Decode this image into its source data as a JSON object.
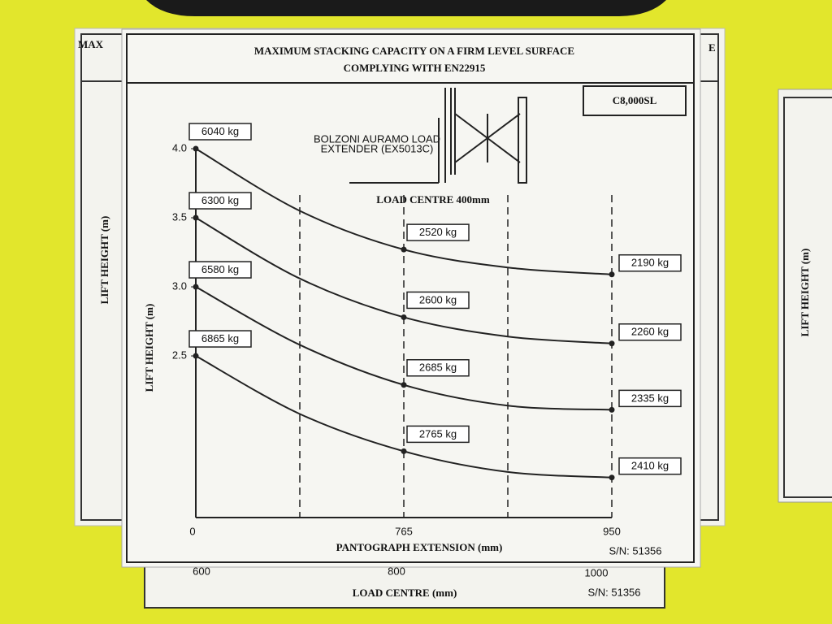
{
  "plate": {
    "title_line1": "MAXIMUM STACKING CAPACITY ON A FIRM LEVEL SURFACE",
    "title_line2": "COMPLYING WITH EN22915",
    "model": "C8,000SL",
    "attachment_line1": "BOLZONI AURAMO LOAD",
    "attachment_line2": "EXTENDER (EX5013C)",
    "load_centre": "LOAD CENTRE 400mm",
    "serial": "S/N: 51356"
  },
  "chart_data": {
    "type": "line",
    "x_label": "PANTOGRAPH EXTENSION (mm)",
    "y_label": "LIFT HEIGHT (m)",
    "categories": [
      "0",
      null,
      "765",
      null,
      "950"
    ],
    "ylim": [
      1.33,
      4.0
    ],
    "yticks": [
      2.5,
      {
        "value": 3,
        "label": "3.0"
      },
      3.5,
      {
        "value": 4,
        "label": "4.0"
      }
    ],
    "dashed_guides": true,
    "color": "#222222",
    "series": [
      {
        "values": [
          4.0,
          3.55,
          3.27,
          3.14,
          3.09
        ],
        "point_labels": [
          "6040 kg",
          null,
          "2520 kg",
          null,
          "2190 kg"
        ]
      },
      {
        "values": [
          3.5,
          3.06,
          2.78,
          2.64,
          2.59
        ],
        "point_labels": [
          "6300 kg",
          null,
          "2600 kg",
          null,
          "2260 kg"
        ]
      },
      {
        "values": [
          3.0,
          2.58,
          2.29,
          2.14,
          2.11
        ],
        "point_labels": [
          "6580 kg",
          null,
          "2685 kg",
          null,
          "2335 kg"
        ]
      },
      {
        "values": [
          2.5,
          2.08,
          1.81,
          1.66,
          1.62
        ],
        "point_labels": [
          "6865 kg",
          null,
          "2765 kg",
          null,
          "2410 kg"
        ]
      }
    ]
  },
  "background": {
    "back_plate_left": "MAX",
    "back_plate_right": "E",
    "back_y_label": "LIFT HEIGHT (m)",
    "bottom_ticks": [
      "600",
      "800",
      "1000"
    ],
    "bottom_label": "LOAD CENTRE (mm)",
    "bottom_serial": "S/N: 51356",
    "right_y_label": "LIFT HEIGHT (m)"
  }
}
